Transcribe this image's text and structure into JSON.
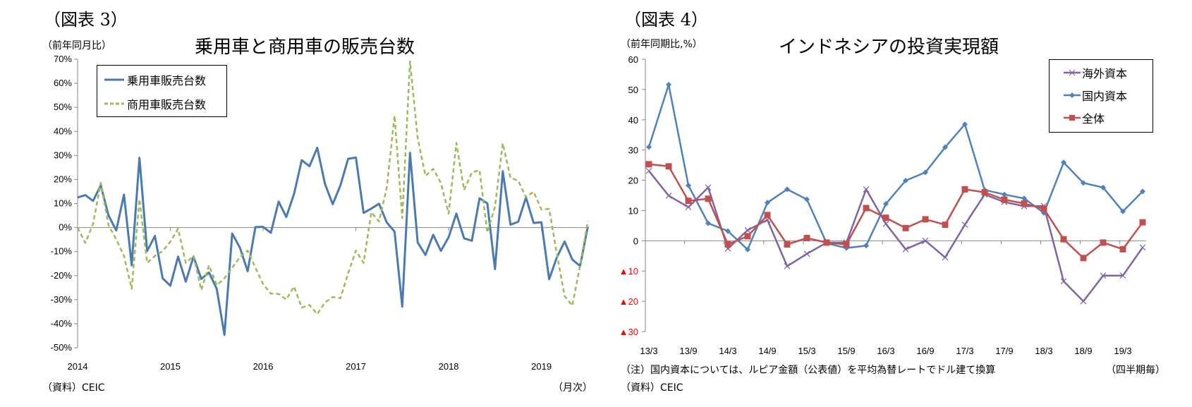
{
  "left": {
    "fig_label": "（図表 3）",
    "unit": "（前年同月比）",
    "source": "（資料）CEIC",
    "freq": "（月次）"
  },
  "right": {
    "fig_label": "（図表 4）",
    "unit": "（前年同期比,%）",
    "note": "（注）国内資本については、ルピア金額（公表値）を平均為替レートでドル建て換算",
    "source": "（資料）CEIC",
    "freq": "（四半期毎）"
  },
  "chart_data": [
    {
      "type": "line",
      "title": "乗用車と商用車の販売台数",
      "xlabel": "",
      "ylabel": "（前年同月比）",
      "ylim": [
        -50,
        70
      ],
      "yticks": [
        70,
        60,
        50,
        40,
        30,
        20,
        10,
        0,
        -10,
        -20,
        -30,
        -40,
        -50
      ],
      "ytick_labels": [
        "70%",
        "60%",
        "50%",
        "40%",
        "30%",
        "20%",
        "10%",
        "0%",
        "-10%",
        "-20%",
        "-30%",
        "-40%",
        "-50%"
      ],
      "x_tick_labels": [
        "2014",
        "2015",
        "2016",
        "2017",
        "2018",
        "2019"
      ],
      "x_start": "2014-01",
      "x_freq": "monthly",
      "legend_position": "top-left",
      "grid": false,
      "series": [
        {
          "name": "乗用車販売台数",
          "color": "#4a7ab0",
          "style": "solid",
          "values": [
            12.5,
            13.5,
            11.1,
            17.5,
            5.1,
            -1.2,
            13.7,
            -15.7,
            29.0,
            -9.8,
            -3.5,
            -21.1,
            -24.2,
            -12.1,
            -22.5,
            -12.1,
            -21.4,
            -18.7,
            -25.5,
            -44.7,
            -2.5,
            -8.4,
            -18.2,
            0.2,
            0.3,
            -2.2,
            10.8,
            4.4,
            14.0,
            28.0,
            25.5,
            33.2,
            18.2,
            9.7,
            17.5,
            28.6,
            29.1,
            6.1,
            7.9,
            9.9,
            2.1,
            -1.7,
            -32.9,
            31.1,
            -6.2,
            -11.4,
            -3.0,
            -9.7,
            -4.0,
            5.8,
            -4.5,
            -5.5,
            12.2,
            10.1,
            -17.3,
            23.4,
            1.2,
            2.4,
            12.5,
            1.9,
            2.2,
            -21.5,
            -12.4,
            -5.8,
            -13.3,
            -16.0,
            0.4
          ]
        },
        {
          "name": "商用車販売台数",
          "color": "#9bbb59",
          "style": "dashed",
          "values": [
            0.0,
            -6.4,
            1.5,
            18.6,
            1.0,
            -4.9,
            -11.8,
            -25.5,
            11.8,
            -14.7,
            -11.8,
            -9.8,
            -5.9,
            -0.5,
            -14.7,
            -11.8,
            -26.0,
            -15.7,
            -24.0,
            -21.1,
            -16.7,
            -12.3,
            -9.6,
            -16.7,
            -23.5,
            -27.5,
            -27.6,
            -29.9,
            -24.5,
            -33.3,
            -32.2,
            -36.0,
            -31.2,
            -28.9,
            -29.4,
            -19.0,
            -9.6,
            -14.7,
            6.4,
            2.5,
            16.7,
            46.6,
            3.9,
            69.1,
            37.2,
            21.5,
            24.4,
            18.5,
            5.8,
            35.2,
            15.6,
            22.9,
            23.9,
            -2.1,
            8.7,
            35.0,
            20.7,
            19.5,
            12.6,
            14.9,
            7.5,
            7.7,
            -10.9,
            -28.5,
            -32.5,
            -15.8,
            2.6
          ]
        }
      ]
    },
    {
      "type": "line",
      "title": "インドネシアの投資実現額",
      "xlabel": "",
      "ylabel": "（前年同期比,%）",
      "ylim": [
        -30,
        60
      ],
      "yticks": [
        60,
        50,
        40,
        30,
        20,
        10,
        0,
        -10,
        -20,
        -30
      ],
      "ytick_labels": [
        "60",
        "50",
        "40",
        "30",
        "20",
        "10",
        "0",
        "▲10",
        "▲20",
        "▲30"
      ],
      "negative_tick_color": "#ff0000",
      "categories": [
        "13/3",
        "13/6",
        "13/9",
        "13/12",
        "14/3",
        "14/6",
        "14/9",
        "14/12",
        "15/3",
        "15/6",
        "15/9",
        "15/12",
        "16/3",
        "16/6",
        "16/9",
        "16/12",
        "17/3",
        "17/6",
        "17/9",
        "17/12",
        "18/3",
        "18/6",
        "18/9",
        "18/12",
        "19/3",
        "19/6"
      ],
      "x_tick_labels": [
        "13/3",
        "13/9",
        "14/3",
        "14/9",
        "15/3",
        "15/9",
        "16/3",
        "16/9",
        "17/3",
        "17/9",
        "18/3",
        "18/9",
        "19/3"
      ],
      "legend_position": "top-right",
      "grid": false,
      "series": [
        {
          "name": "海外資本",
          "color": "#8064a2",
          "marker": "x",
          "values": [
            23.1,
            14.9,
            11.1,
            17.6,
            -2.6,
            3.5,
            6.9,
            -8.4,
            -4.3,
            -0.6,
            -0.6,
            17.0,
            5.6,
            -2.8,
            0.0,
            -5.5,
            5.3,
            15.3,
            12.8,
            11.4,
            11.5,
            -13.4,
            -20.0,
            -11.5,
            -11.5,
            -2.2
          ]
        },
        {
          "name": "国内資本",
          "color": "#4f81bd",
          "marker": "diamond",
          "values": [
            31.0,
            51.6,
            18.3,
            5.8,
            3.2,
            -2.9,
            12.6,
            17.0,
            13.7,
            -0.8,
            -2.4,
            -1.6,
            12.2,
            19.9,
            22.6,
            30.9,
            38.5,
            16.8,
            15.3,
            14.0,
            9.2,
            25.9,
            19.1,
            17.6,
            9.7,
            16.3
          ]
        },
        {
          "name": "全体",
          "color": "#c0504d",
          "marker": "square",
          "values": [
            25.3,
            24.6,
            13.2,
            13.9,
            -1.2,
            1.5,
            8.5,
            -1.2,
            0.9,
            -0.6,
            -1.2,
            10.8,
            7.6,
            4.2,
            7.1,
            5.3,
            17.0,
            16.0,
            13.6,
            12.3,
            10.6,
            0.5,
            -5.7,
            -0.6,
            -2.8,
            6.1
          ]
        }
      ]
    }
  ]
}
